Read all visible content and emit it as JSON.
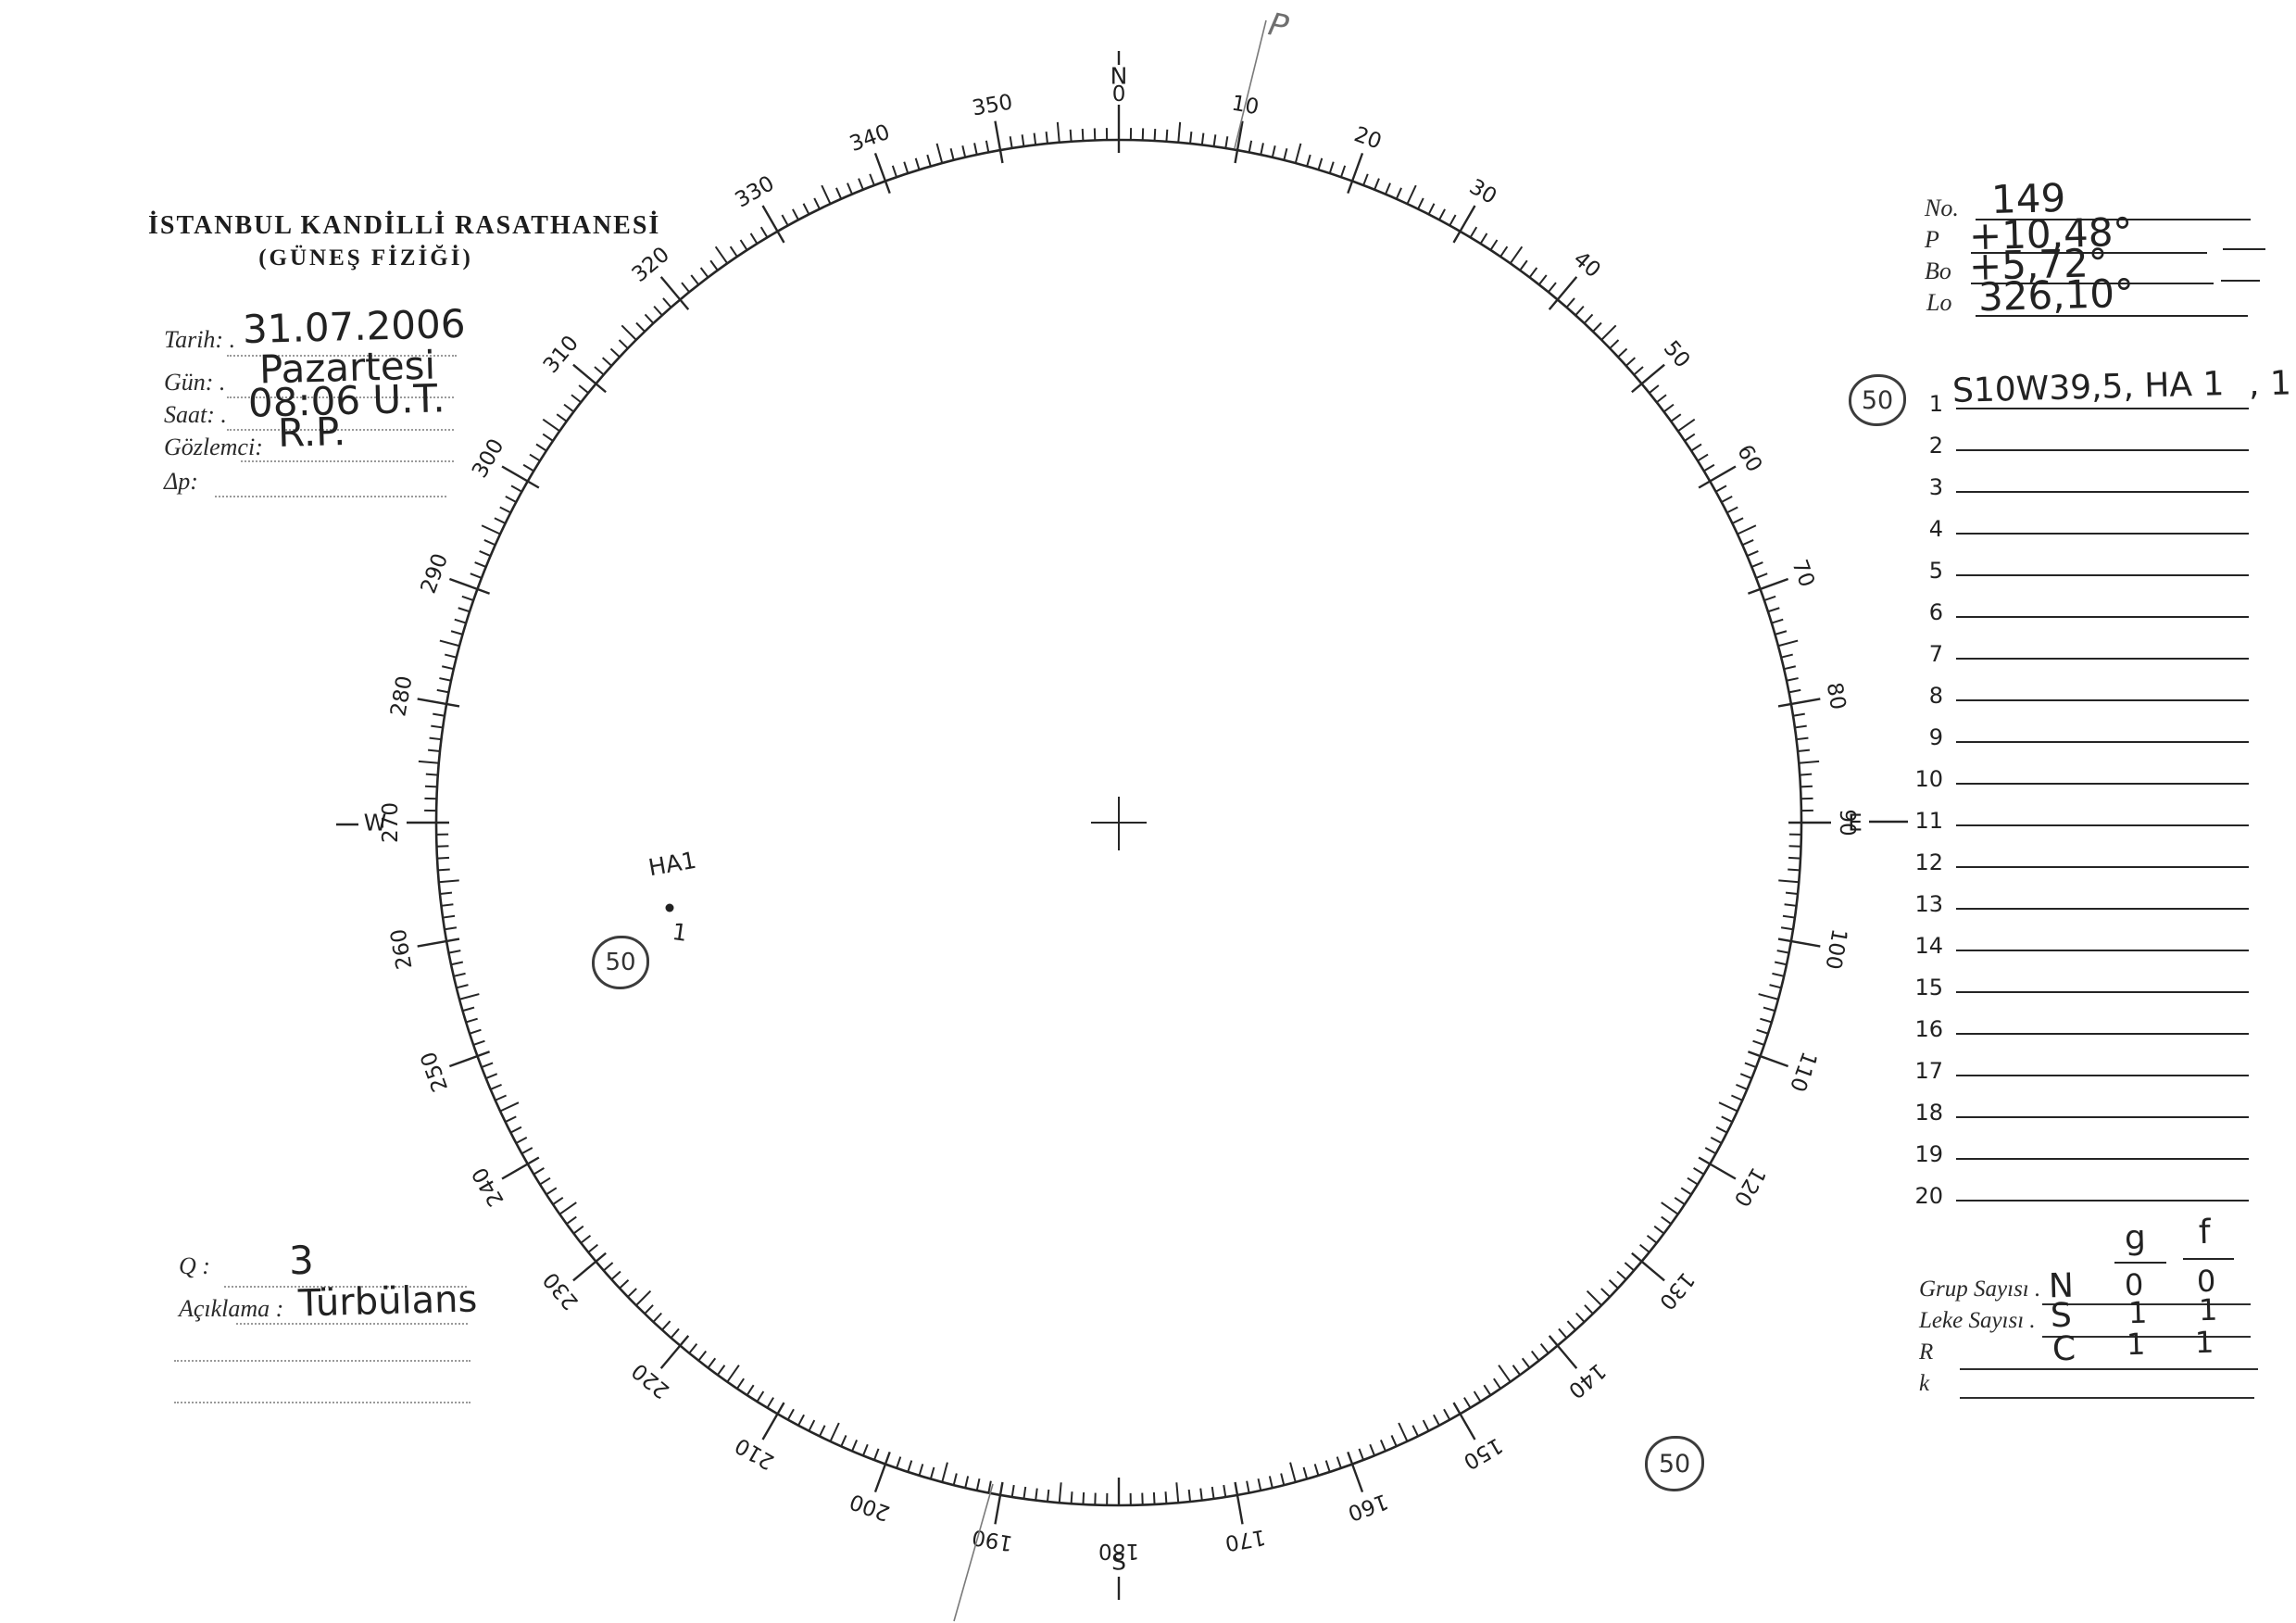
{
  "header": {
    "line1": "İSTANBUL KANDİLLİ RASATHANESİ",
    "line2": "(GÜNEŞ FİZİĞİ)"
  },
  "observation": {
    "tarih_label": "Tarih: .",
    "tarih_value": "31.07.2006",
    "gun_label": "Gün: .",
    "gun_value": "Pazartesi",
    "saat_label": "Saat: .",
    "saat_value": "08:06 U.T.",
    "gozlemci_label": "Gözlemci:",
    "gozlemci_value": "R.P.",
    "dp_label": "Δp:",
    "dp_value": ""
  },
  "ephemeris": {
    "no_label": "No.",
    "no_value": "149",
    "p_label": "P",
    "p_value": "+10,48°",
    "bo_label": "Bo",
    "bo_value": "+5,72°",
    "lo_label": "Lo",
    "lo_value": "326,10°"
  },
  "groups_list": {
    "badge": "50",
    "items": [
      {
        "num": "1",
        "text": "S10W39,5, HA 1",
        "suffix": ", 1"
      },
      {
        "num": "2",
        "text": "",
        "suffix": ""
      },
      {
        "num": "3",
        "text": "",
        "suffix": ""
      },
      {
        "num": "4",
        "text": "",
        "suffix": ""
      },
      {
        "num": "5",
        "text": "",
        "suffix": ""
      },
      {
        "num": "6",
        "text": "",
        "suffix": ""
      },
      {
        "num": "7",
        "text": "",
        "suffix": ""
      },
      {
        "num": "8",
        "text": "",
        "suffix": ""
      },
      {
        "num": "9",
        "text": "",
        "suffix": ""
      },
      {
        "num": "10",
        "text": "",
        "suffix": ""
      },
      {
        "num": "11",
        "text": "",
        "suffix": ""
      },
      {
        "num": "12",
        "text": "",
        "suffix": ""
      },
      {
        "num": "13",
        "text": "",
        "suffix": ""
      },
      {
        "num": "14",
        "text": "",
        "suffix": ""
      },
      {
        "num": "15",
        "text": "",
        "suffix": ""
      },
      {
        "num": "16",
        "text": "",
        "suffix": ""
      },
      {
        "num": "17",
        "text": "",
        "suffix": ""
      },
      {
        "num": "18",
        "text": "",
        "suffix": ""
      },
      {
        "num": "19",
        "text": "",
        "suffix": ""
      },
      {
        "num": "20",
        "text": "",
        "suffix": ""
      }
    ]
  },
  "counts": {
    "col_g": "g",
    "col_f": "f",
    "rows": [
      {
        "label": "Grup Sayısı .",
        "letter": "N",
        "g": "0",
        "f": "0"
      },
      {
        "label": "Leke Sayısı .",
        "letter": "S",
        "g": "1",
        "f": "1"
      },
      {
        "label": "R",
        "letter": "C",
        "g": "1",
        "f": "1"
      },
      {
        "label": "k",
        "letter": "",
        "g": "",
        "f": ""
      }
    ]
  },
  "quality": {
    "q_label": "Q :",
    "q_value": "3",
    "aciklama_label": "Açıklama :",
    "aciklama_value": "Türbülans"
  },
  "disk": {
    "degree_labels": [
      0,
      10,
      20,
      30,
      40,
      50,
      60,
      70,
      80,
      90,
      100,
      110,
      120,
      130,
      140,
      150,
      160,
      170,
      180,
      190,
      200,
      210,
      220,
      230,
      240,
      250,
      260,
      270,
      280,
      290,
      300,
      310,
      320,
      330,
      340,
      350
    ],
    "cardinals": {
      "north": "N",
      "east": "E",
      "south": "S",
      "west": "W"
    },
    "p_marker": "P",
    "region_label": "HA1",
    "spot_mark": "1",
    "disk_badge": "50"
  },
  "bottom_right_badge": "50"
}
